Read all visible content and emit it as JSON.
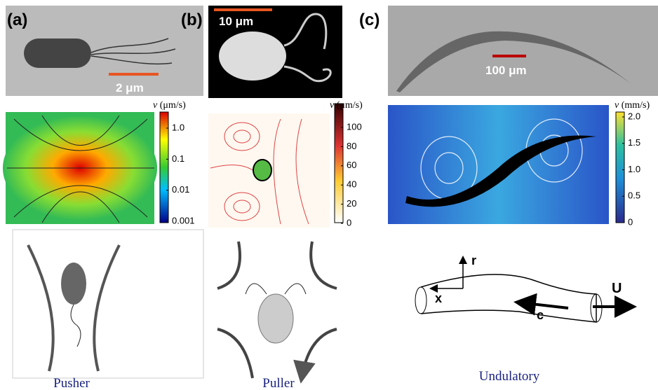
{
  "panels": [
    {
      "label": "(a)",
      "scale_bar": "2 μm",
      "colorbar": {
        "symbol": "v",
        "unit": "(μm/s)",
        "ticks": [
          "1.0",
          "0.1",
          "0.01",
          "0.001"
        ]
      },
      "caption": "Pusher"
    },
    {
      "label": "(b)",
      "scale_bar": "10 μm",
      "colorbar": {
        "symbol": "v",
        "unit": "(μm/s)",
        "ticks": [
          "100",
          "80",
          "60",
          "40",
          "20",
          "0"
        ]
      },
      "caption": "Puller"
    },
    {
      "label": "(c)",
      "scale_bar": "100 μm",
      "colorbar": {
        "symbol": "v",
        "unit": "(mm/s)",
        "ticks": [
          "2.0",
          "1.5",
          "1.0",
          "0.5",
          "0"
        ]
      },
      "caption": "Undulatory",
      "diagram_labels": {
        "r": "r",
        "x": "x",
        "c": "c",
        "U": "U"
      }
    }
  ]
}
